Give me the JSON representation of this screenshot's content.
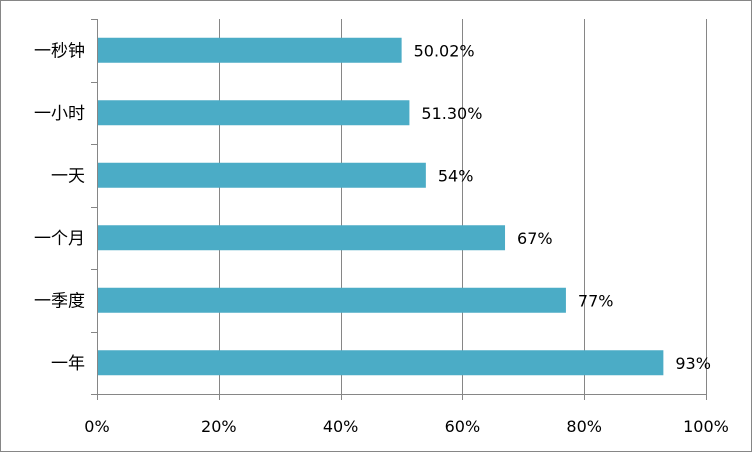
{
  "chart_data": {
    "type": "bar",
    "orientation": "horizontal",
    "categories": [
      "一秒钟",
      "一小时",
      "一天",
      "一个月",
      "一季度",
      "一年"
    ],
    "values": [
      50.02,
      51.3,
      54,
      67,
      77,
      93
    ],
    "data_labels": [
      "50.02%",
      "51.30%",
      "54%",
      "67%",
      "77%",
      "93%"
    ],
    "x_ticks": [
      0,
      20,
      40,
      60,
      80,
      100
    ],
    "x_tick_labels": [
      "0%",
      "20%",
      "40%",
      "60%",
      "80%",
      "100%"
    ],
    "xlim": [
      0,
      100
    ],
    "title": "",
    "xlabel": "",
    "ylabel": "",
    "grid": "vertical",
    "legend": "none",
    "bar_color": "#4bacc6",
    "grid_color": "#868686"
  }
}
